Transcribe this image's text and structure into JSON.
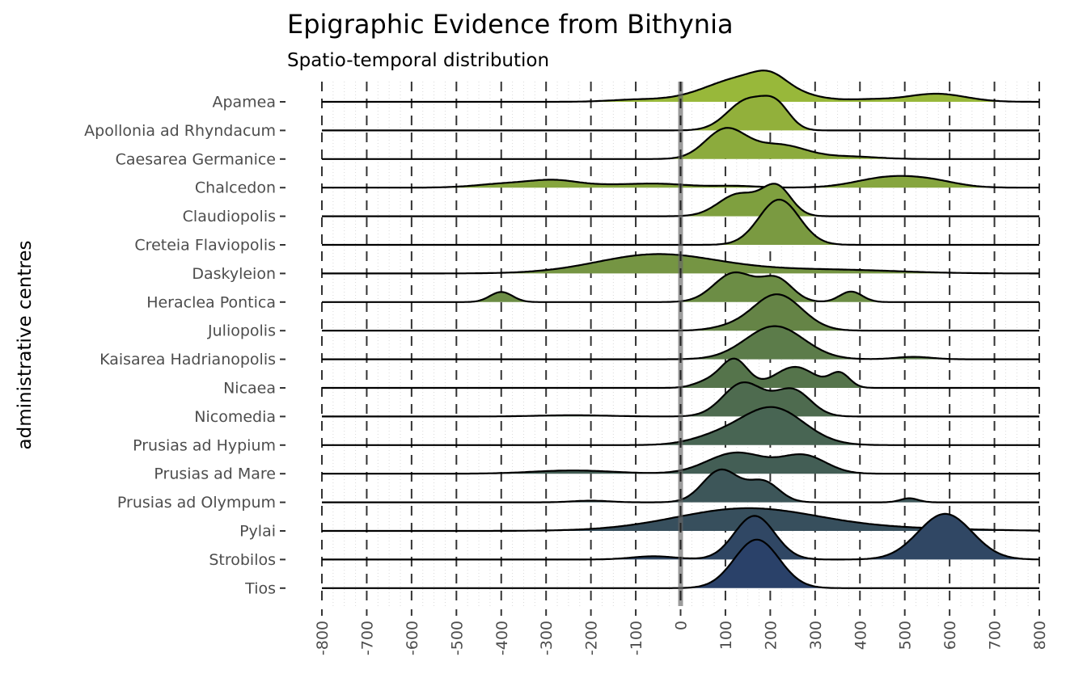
{
  "chart_data": {
    "type": "ridgeline",
    "title": "Epigraphic Evidence from Bithynia",
    "subtitle": "Spatio-temporal distribution",
    "xlabel": "",
    "ylabel": "administrative centres",
    "xlim": [
      -800,
      800
    ],
    "x_ticks": [
      -800,
      -700,
      -600,
      -500,
      -400,
      -300,
      -200,
      -100,
      0,
      100,
      200,
      300,
      400,
      500,
      600,
      700,
      800
    ],
    "reference_line": 0,
    "grid": {
      "major_x_dashed": true,
      "minor_x_dotted": true
    },
    "categories": [
      "Apamea",
      "Apollonia ad Rhyndacum",
      "Caesarea Germanice",
      "Chalcedon",
      "Claudiopolis",
      "Creteia Flaviopolis",
      "Daskyleion",
      "Heraclea Pontica",
      "Juliopolis",
      "Kaisarea Hadrianopolis",
      "Nicaea",
      "Nicomedia",
      "Prusias ad Hypium",
      "Prusias ad Mare",
      "Prusias ad Olympum",
      "Pylai",
      "Strobilos",
      "Tios"
    ],
    "colors": [
      "#98b83a",
      "#92b03b",
      "#8cab3d",
      "#86a63e",
      "#7fa03f",
      "#7a9a41",
      "#759543",
      "#6c8d45",
      "#658446",
      "#5c7c4a",
      "#55744b",
      "#4e6b4f",
      "#486553",
      "#435e55",
      "#3d5659",
      "#374f5d",
      "#304764",
      "#2a4169"
    ],
    "series": [
      {
        "name": "Apamea",
        "peaks": [
          [
            -100,
            60,
            0.05
          ],
          [
            150,
            90,
            0.62
          ],
          [
            200,
            35,
            0.22
          ],
          [
            420,
            50,
            0.05
          ],
          [
            570,
            65,
            0.2
          ]
        ]
      },
      {
        "name": "Apollonia ad Rhyndacum",
        "peaks": [
          [
            150,
            45,
            0.75
          ],
          [
            215,
            30,
            0.5
          ]
        ]
      },
      {
        "name": "Caesarea Germanice",
        "peaks": [
          [
            100,
            45,
            0.72
          ],
          [
            220,
            60,
            0.35
          ],
          [
            380,
            60,
            0.06
          ]
        ]
      },
      {
        "name": "Chalcedon",
        "peaks": [
          [
            -380,
            70,
            0.1
          ],
          [
            -280,
            50,
            0.12
          ],
          [
            -150,
            120,
            0.07
          ],
          [
            -40,
            60,
            0.05
          ],
          [
            120,
            50,
            0.04
          ],
          [
            460,
            70,
            0.24
          ],
          [
            560,
            60,
            0.14
          ]
        ]
      },
      {
        "name": "Claudiopolis",
        "peaks": [
          [
            130,
            45,
            0.55
          ],
          [
            215,
            32,
            0.7
          ]
        ]
      },
      {
        "name": "Creteia Flaviopolis",
        "peaks": [
          [
            220,
            45,
            1.12
          ]
        ]
      },
      {
        "name": "Daskyleion",
        "peaks": [
          [
            -60,
            130,
            0.42
          ],
          [
            150,
            200,
            0.1
          ],
          [
            400,
            120,
            0.04
          ]
        ]
      },
      {
        "name": "Heraclea Pontica",
        "peaks": [
          [
            -400,
            25,
            0.25
          ],
          [
            120,
            45,
            0.72
          ],
          [
            215,
            35,
            0.55
          ],
          [
            380,
            25,
            0.26
          ]
        ]
      },
      {
        "name": "Juliopolis",
        "peaks": [
          [
            215,
            55,
            0.9
          ],
          [
            100,
            40,
            0.06
          ]
        ]
      },
      {
        "name": "Kaisarea Hadrianopolis",
        "peaks": [
          [
            210,
            65,
            0.82
          ],
          [
            520,
            40,
            0.06
          ]
        ]
      },
      {
        "name": "Nicaea",
        "peaks": [
          [
            120,
            30,
            0.7
          ],
          [
            255,
            45,
            0.52
          ],
          [
            355,
            22,
            0.35
          ],
          [
            60,
            30,
            0.15
          ]
        ]
      },
      {
        "name": "Nicomedia",
        "peaks": [
          [
            140,
            45,
            0.83
          ],
          [
            250,
            40,
            0.65
          ],
          [
            -240,
            80,
            0.03
          ]
        ]
      },
      {
        "name": "Prusias ad Hypium",
        "peaks": [
          [
            205,
            70,
            0.92
          ],
          [
            80,
            60,
            0.18
          ]
        ]
      },
      {
        "name": "Prusias ad Mare",
        "peaks": [
          [
            -240,
            90,
            0.08
          ],
          [
            125,
            65,
            0.52
          ],
          [
            275,
            50,
            0.44
          ]
        ]
      },
      {
        "name": "Prusias ad Olympum",
        "peaks": [
          [
            90,
            40,
            0.8
          ],
          [
            185,
            35,
            0.5
          ],
          [
            -200,
            40,
            0.04
          ],
          [
            510,
            20,
            0.1
          ]
        ]
      },
      {
        "name": "Pylai",
        "peaks": [
          [
            150,
            160,
            0.56
          ],
          [
            520,
            150,
            0.05
          ]
        ]
      },
      {
        "name": "Strobilos",
        "peaks": [
          [
            -60,
            50,
            0.08
          ],
          [
            165,
            45,
            1.08
          ],
          [
            590,
            60,
            1.13
          ]
        ]
      },
      {
        "name": "Tios",
        "peaks": [
          [
            170,
            50,
            1.2
          ]
        ]
      }
    ]
  }
}
